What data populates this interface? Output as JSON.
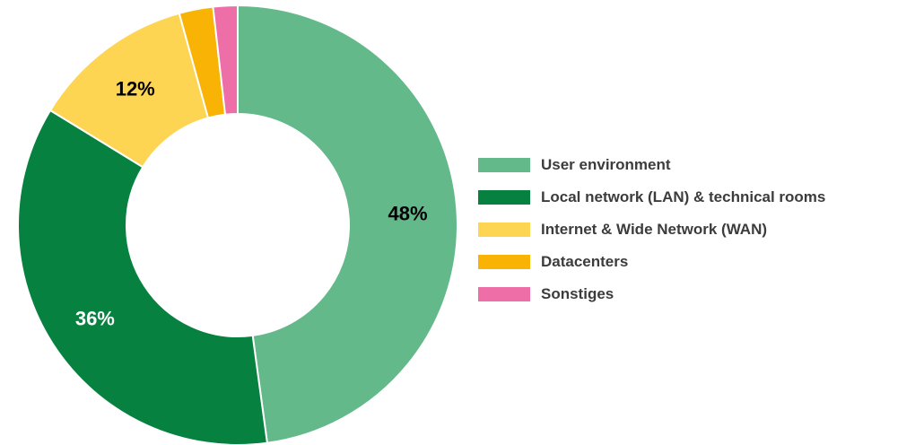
{
  "chart_data": {
    "type": "pie",
    "variant": "donut",
    "title": "",
    "legend_position": "right",
    "slices": [
      {
        "label": "User environment",
        "value": 48,
        "display": "48%",
        "color": "#63b98a",
        "label_color": "#000000",
        "show_label": true
      },
      {
        "label": "Local network (LAN) & technical rooms",
        "value": 36,
        "display": "36%",
        "color": "#07813f",
        "label_color": "#ffffff",
        "show_label": true
      },
      {
        "label": "Internet & Wide Network (WAN)",
        "value": 12,
        "display": "12%",
        "color": "#fdd553",
        "label_color": "#000000",
        "show_label": true
      },
      {
        "label": "Datacenters",
        "value": 2.5,
        "display": "",
        "color": "#f8b305",
        "label_color": "#000000",
        "show_label": false
      },
      {
        "label": "Sonstiges",
        "value": 1.8,
        "display": "",
        "color": "#ee6ea7",
        "label_color": "#000000",
        "show_label": false
      }
    ]
  }
}
